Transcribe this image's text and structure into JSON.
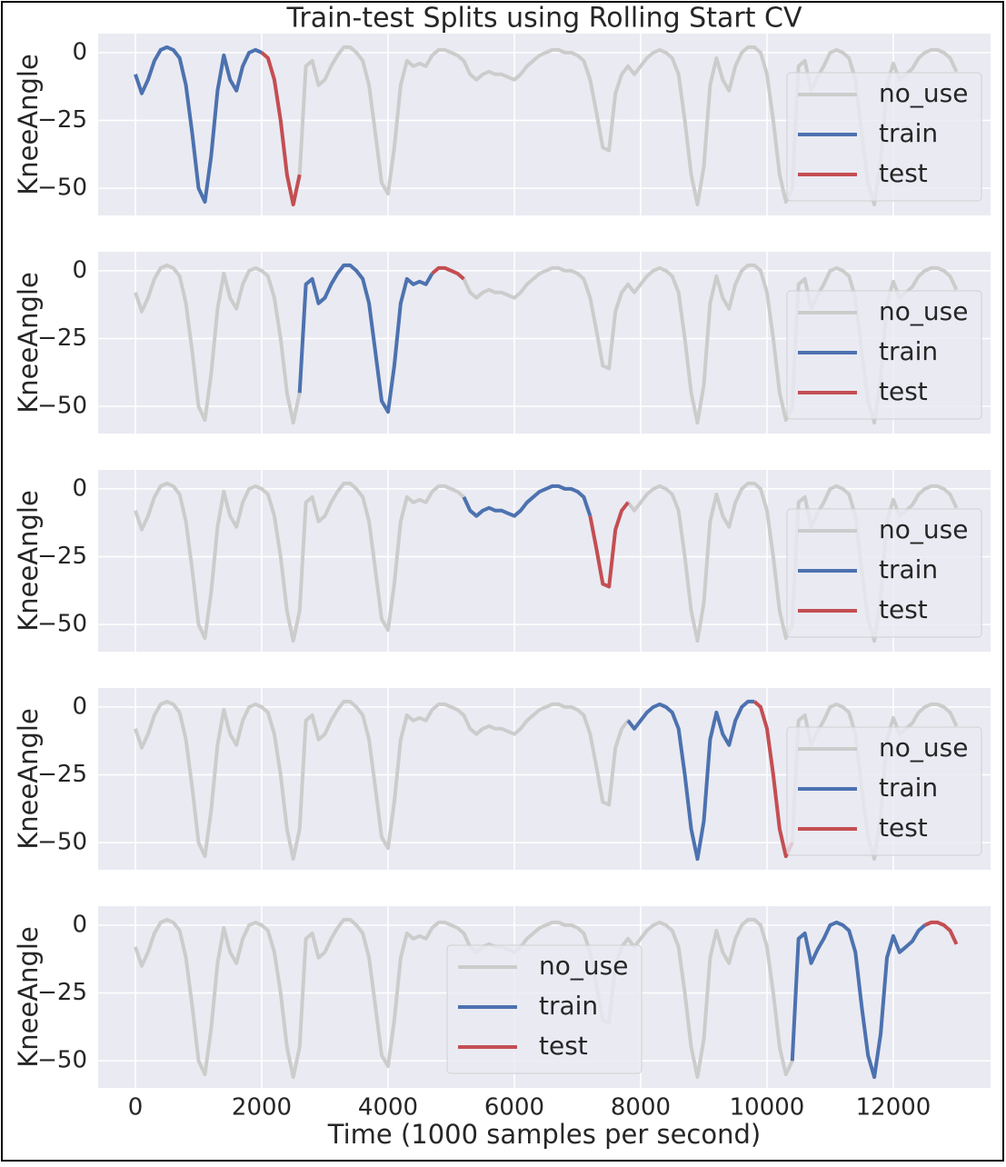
{
  "chart_data": {
    "type": "line",
    "title": "Train-test Splits using Rolling Start CV",
    "xlabel": "Time (1000 samples per second)",
    "ylabel": "KneeAngle",
    "x": [
      0,
      100,
      200,
      300,
      400,
      500,
      600,
      700,
      800,
      900,
      1000,
      1100,
      1200,
      1300,
      1400,
      1500,
      1600,
      1700,
      1800,
      1900,
      2000,
      2100,
      2200,
      2300,
      2400,
      2500,
      2600,
      2700,
      2800,
      2900,
      3000,
      3100,
      3200,
      3300,
      3400,
      3500,
      3600,
      3700,
      3800,
      3900,
      4000,
      4100,
      4200,
      4300,
      4400,
      4500,
      4600,
      4700,
      4800,
      4900,
      5000,
      5100,
      5200,
      5300,
      5400,
      5500,
      5600,
      5700,
      5800,
      5900,
      6000,
      6100,
      6200,
      6300,
      6400,
      6500,
      6600,
      6700,
      6800,
      6900,
      7000,
      7100,
      7200,
      7300,
      7400,
      7500,
      7600,
      7700,
      7800,
      7900,
      8000,
      8100,
      8200,
      8300,
      8400,
      8500,
      8600,
      8700,
      8800,
      8900,
      9000,
      9100,
      9200,
      9300,
      9400,
      9500,
      9600,
      9700,
      9800,
      9900,
      10000,
      10100,
      10200,
      10300,
      10400,
      10500,
      10600,
      10700,
      10800,
      10900,
      11000,
      11100,
      11200,
      11300,
      11400,
      11500,
      11600,
      11700,
      11800,
      11900,
      12000,
      12100,
      12200,
      12300,
      12400,
      12500,
      12600,
      12700,
      12800,
      12900,
      13000
    ],
    "series": [
      {
        "name": "no_use",
        "color": "#cccccc",
        "values": [
          -8,
          -15,
          -10,
          -3,
          1,
          2,
          1,
          -2,
          -12,
          -30,
          -50,
          -55,
          -38,
          -14,
          -1,
          -10,
          -14,
          -5,
          0,
          1,
          0,
          -2,
          -10,
          -25,
          -45,
          -56,
          -45,
          -5,
          -3,
          -12,
          -10,
          -5,
          -1,
          2,
          2,
          0,
          -3,
          -12,
          -30,
          -48,
          -52,
          -35,
          -12,
          -3,
          -5,
          -4,
          -5,
          -1,
          1,
          1,
          0,
          -1,
          -3,
          -8,
          -10,
          -8,
          -7,
          -8,
          -8,
          -9,
          -10,
          -8,
          -5,
          -3,
          -1,
          0,
          1,
          1,
          0,
          0,
          -1,
          -3,
          -10,
          -22,
          -35,
          -36,
          -15,
          -8,
          -5,
          -8,
          -5,
          -2,
          0,
          1,
          0,
          -2,
          -8,
          -25,
          -45,
          -56,
          -42,
          -12,
          -2,
          -10,
          -14,
          -5,
          0,
          2,
          2,
          0,
          -8,
          -25,
          -45,
          -55,
          -50,
          -5,
          -3,
          -14,
          -9,
          -5,
          0,
          1,
          0,
          -2,
          -10,
          -30,
          -48,
          -56,
          -40,
          -12,
          -4,
          -10,
          -8,
          -6,
          -2,
          0,
          1,
          1,
          0,
          -2,
          -7
        ]
      },
      {
        "name": "train",
        "color": "#4c72b0"
      },
      {
        "name": "test",
        "color": "#c44e52"
      }
    ],
    "splits": [
      {
        "train": [
          0,
          2000
        ],
        "test": [
          2000,
          2600
        ],
        "legend_loc": "center right"
      },
      {
        "train": [
          2600,
          4700
        ],
        "test": [
          4700,
          5200
        ],
        "legend_loc": "center right"
      },
      {
        "train": [
          5200,
          7200
        ],
        "test": [
          7200,
          7800
        ],
        "legend_loc": "center right"
      },
      {
        "train": [
          7800,
          9800
        ],
        "test": [
          9800,
          10400
        ],
        "legend_loc": "center right"
      },
      {
        "train": [
          10400,
          12500
        ],
        "test": [
          12500,
          13000
        ],
        "legend_loc": "center"
      }
    ],
    "xlim": [
      -590,
      13540
    ],
    "ylim": [
      -60,
      7
    ],
    "xticks": [
      0,
      2000,
      4000,
      6000,
      8000,
      10000,
      12000
    ],
    "yticks": [
      {
        "value": -50,
        "label": "−50"
      },
      {
        "value": -25,
        "label": "−25"
      },
      0
    ],
    "grid": true
  }
}
